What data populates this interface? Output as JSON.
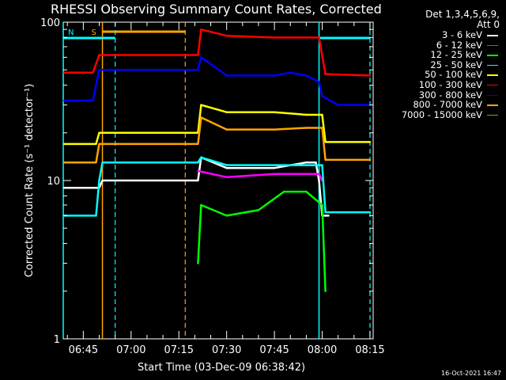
{
  "chart_data": {
    "type": "line",
    "title": "RHESSI Observing Summary Count Rates, Corrected",
    "xlabel": "Start Time (03-Dec-09 06:38:42)",
    "ylabel": "Corrected Count Rate (s⁻¹ detector⁻¹)",
    "yscale": "log",
    "ylim": [
      1,
      100
    ],
    "xlim": [
      "06:38:42",
      "08:16:00"
    ],
    "xticks": [
      "06:45",
      "07:00",
      "07:15",
      "07:30",
      "07:45",
      "08:00",
      "08:15"
    ],
    "yticks": [
      "1",
      "10",
      "100"
    ],
    "legend_header": [
      "Det 1,3,4,5,6,9,",
      "Att 0"
    ],
    "legend_placement": "right",
    "series": [
      {
        "name": "3 - 6 keV",
        "color": "#ffffff",
        "x": [
          "06:39",
          "06:50",
          "06:51",
          "07:21",
          "07:22",
          "07:30",
          "07:45",
          "07:55",
          "07:58",
          "07:59",
          "08:00",
          "08:01",
          "08:02"
        ],
        "values": [
          9,
          9,
          10,
          10,
          14,
          12,
          12,
          13,
          13,
          10,
          6,
          6,
          6
        ]
      },
      {
        "name": "6 - 12 keV",
        "color": "#ff00ff",
        "x": [
          "07:21",
          "07:30",
          "07:45",
          "07:55",
          "07:59",
          "08:00"
        ],
        "values": [
          11.5,
          10.5,
          11,
          11,
          11,
          10
        ]
      },
      {
        "name": "12 - 25 keV",
        "color": "#00ff00",
        "x": [
          "07:21",
          "07:22",
          "07:30",
          "07:40",
          "07:48",
          "07:55",
          "08:00",
          "08:01"
        ],
        "values": [
          3,
          7,
          6,
          6.5,
          8.5,
          8.5,
          7,
          2
        ]
      },
      {
        "name": "25 - 50 keV",
        "color": "#00ffff",
        "x": [
          "06:39",
          "06:49",
          "06:50",
          "06:51",
          "07:21",
          "07:22",
          "07:30",
          "07:45",
          "07:55",
          "08:00",
          "08:01",
          "08:15"
        ],
        "values": [
          6,
          6,
          10,
          13,
          13,
          14,
          12.5,
          12.5,
          12.5,
          12.5,
          6.3,
          6.3
        ]
      },
      {
        "name": "50 - 100 keV",
        "color": "#ffff00",
        "x": [
          "06:39",
          "06:49",
          "06:50",
          "07:21",
          "07:22",
          "07:30",
          "07:45",
          "07:55",
          "08:00",
          "08:01",
          "08:15"
        ],
        "values": [
          17,
          17,
          20,
          20,
          30,
          27,
          27,
          26,
          26,
          17.5,
          17.5
        ]
      },
      {
        "name": "100 - 300 keV",
        "color": "#ff0000",
        "x": [
          "06:39",
          "06:48",
          "06:50",
          "07:21",
          "07:22",
          "07:30",
          "07:45",
          "07:55",
          "07:59",
          "08:01",
          "08:15"
        ],
        "values": [
          48,
          48,
          62,
          62,
          90,
          82,
          80,
          80,
          80,
          47,
          46
        ]
      },
      {
        "name": "300 - 800 keV",
        "color": "#0000ff",
        "x": [
          "06:39",
          "06:48",
          "06:50",
          "07:21",
          "07:22",
          "07:30",
          "07:45",
          "07:50",
          "07:55",
          "07:59",
          "08:00",
          "08:05",
          "08:15"
        ],
        "values": [
          32,
          32,
          50,
          50,
          60,
          46,
          46,
          48,
          46,
          42,
          34,
          30,
          30
        ]
      },
      {
        "name": "800 - 7000 keV",
        "color": "#ffa500",
        "x": [
          "06:39",
          "06:49",
          "06:50",
          "07:21",
          "07:22",
          "07:30",
          "07:45",
          "07:55",
          "08:00",
          "08:01",
          "08:15"
        ],
        "values": [
          13,
          13,
          17,
          17,
          25,
          21,
          21,
          21.5,
          21.5,
          13.5,
          13.5
        ]
      },
      {
        "name": "7000 - 15000 keV",
        "color": "#b8860b",
        "x": [],
        "values": []
      }
    ],
    "annotations": [
      {
        "label": "S",
        "color": "#ffa500",
        "type": "saa-interval",
        "x_start": "06:51",
        "x_end": "07:17"
      },
      {
        "label": "N",
        "color": "#00ffff",
        "type": "night-interval",
        "x_start": "06:38:42",
        "x_end": "06:55"
      },
      {
        "label": "",
        "color": "#00ffff",
        "type": "night-interval",
        "x_start": "07:59",
        "x_end": "08:15"
      }
    ],
    "grid": false
  },
  "footer_timestamp": "16-Oct-2021 16:47"
}
